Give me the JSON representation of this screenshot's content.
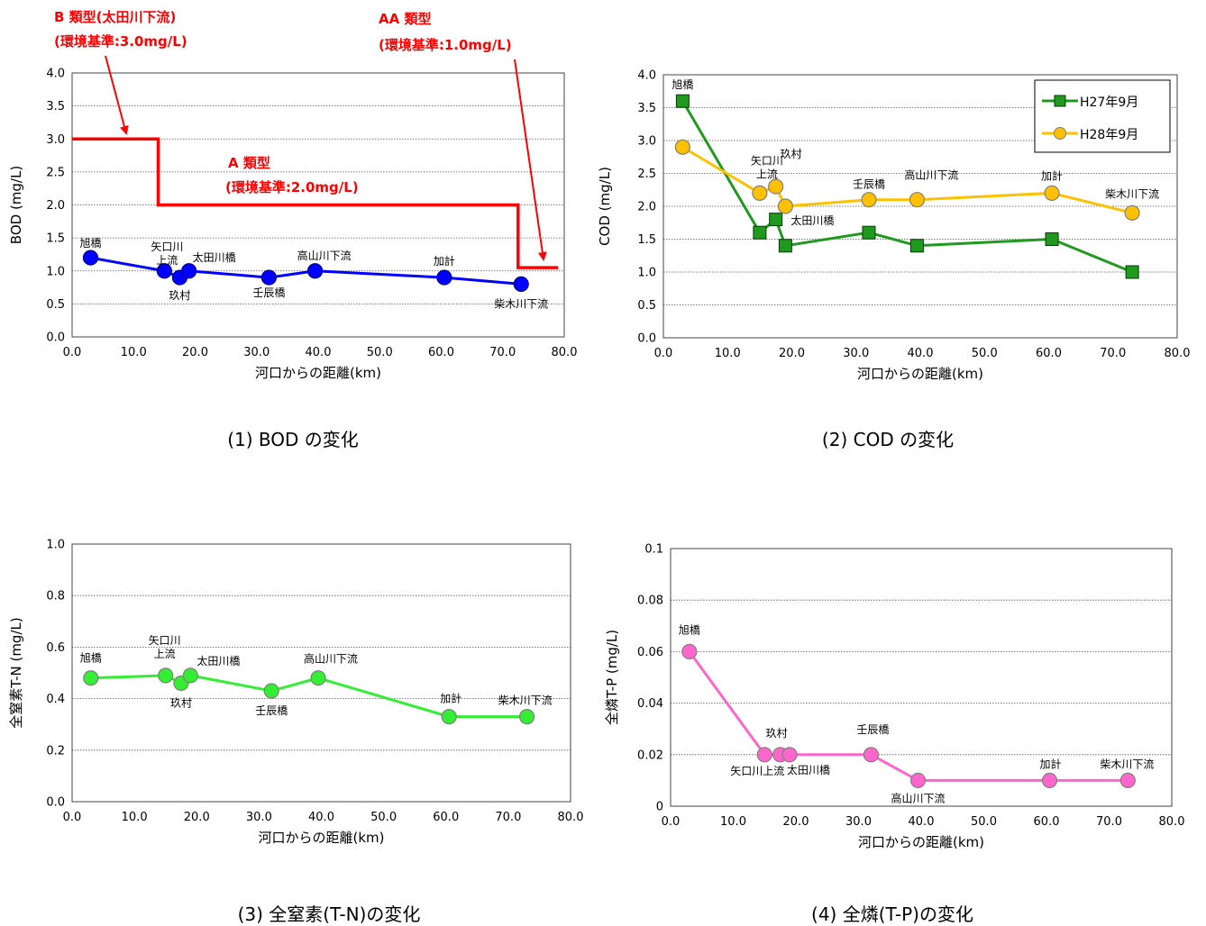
{
  "chart_data": [
    {
      "type": "line",
      "caption": "(1) BOD の変化",
      "xlabel": "河口からの距離(km)",
      "ylabel": "BOD (mg/L)",
      "xlim": [
        0,
        80
      ],
      "ylim": [
        0,
        4
      ],
      "xticks": [
        "0.0",
        "10.0",
        "20.0",
        "30.0",
        "40.0",
        "50.0",
        "60.0",
        "70.0",
        "80.0"
      ],
      "yticks": [
        "0.0",
        "0.5",
        "1.0",
        "1.5",
        "2.0",
        "2.5",
        "3.0",
        "3.5",
        "4.0"
      ],
      "grid": true,
      "series": [
        {
          "color": "#0000ff",
          "marker": "circle",
          "x": [
            3.0,
            15.0,
            17.5,
            19.0,
            32.0,
            39.5,
            60.5,
            73.0
          ],
          "y": [
            1.2,
            1.0,
            0.9,
            1.0,
            0.9,
            1.0,
            0.9,
            0.8
          ],
          "labels": [
            "旭橋",
            "矢口川\n上流",
            "玖村",
            "太田川橋",
            "壬辰橋",
            "高山川下流",
            "加計",
            "柴木川下流"
          ]
        }
      ],
      "standard_line": {
        "color": "#ff0000",
        "x": [
          0,
          14,
          14,
          72.5,
          72.5,
          79
        ],
        "y": [
          3.0,
          3.0,
          2.0,
          2.0,
          1.05,
          1.05
        ]
      },
      "annotations": [
        {
          "text": "B 類型(太田川下流)",
          "color": "#ff0000"
        },
        {
          "text": "(環境基準:3.0mg/L)",
          "color": "#ff0000"
        },
        {
          "text": "AA 類型",
          "color": "#ff0000"
        },
        {
          "text": "(環境基準:1.0mg/L)",
          "color": "#ff0000"
        },
        {
          "text": "A 類型",
          "color": "#ff0000"
        },
        {
          "text": "(環境基準:2.0mg/L)",
          "color": "#ff0000"
        }
      ]
    },
    {
      "type": "line",
      "caption": "(2) COD の変化",
      "xlabel": "河口からの距離(km)",
      "ylabel": "COD (mg/L)",
      "xlim": [
        0,
        80
      ],
      "ylim": [
        0,
        4
      ],
      "xticks": [
        "0.0",
        "10.0",
        "20.0",
        "30.0",
        "40.0",
        "50.0",
        "60.0",
        "70.0",
        "80.0"
      ],
      "yticks": [
        "0.0",
        "0.5",
        "1.0",
        "1.5",
        "2.0",
        "2.5",
        "3.0",
        "3.5",
        "4.0"
      ],
      "grid": true,
      "legend": "top-right",
      "series": [
        {
          "name": "H27年9月",
          "color": "#1f9a1f",
          "marker": "square",
          "x": [
            3.0,
            15.0,
            17.5,
            19.0,
            32.0,
            39.5,
            60.5,
            73.0
          ],
          "y": [
            3.6,
            1.6,
            1.8,
            1.4,
            1.6,
            1.4,
            1.5,
            1.0
          ]
        },
        {
          "name": "H28年9月",
          "color": "#ffc000",
          "marker": "circle",
          "x": [
            3.0,
            15.0,
            17.5,
            19.0,
            32.0,
            39.5,
            60.5,
            73.0
          ],
          "y": [
            2.9,
            2.2,
            2.3,
            2.0,
            2.1,
            2.1,
            2.2,
            1.9
          ]
        }
      ],
      "labels": [
        "旭橋",
        "矢口川\n上流",
        "玖村",
        "太田川橋",
        "壬辰橋",
        "高山川下流",
        "加計",
        "柴木川下流"
      ]
    },
    {
      "type": "line",
      "caption": "(3) 全窒素(T-N)の変化",
      "xlabel": "河口からの距離(km)",
      "ylabel": "全窒素T-N (mg/L)",
      "xlim": [
        0,
        80
      ],
      "ylim": [
        0,
        1
      ],
      "xticks": [
        "0.0",
        "10.0",
        "20.0",
        "30.0",
        "40.0",
        "50.0",
        "60.0",
        "70.0",
        "80.0"
      ],
      "yticks": [
        "0.0",
        "0.2",
        "0.4",
        "0.6",
        "0.8",
        "1.0"
      ],
      "grid": true,
      "series": [
        {
          "color": "#33ee33",
          "marker": "circle",
          "x": [
            3.0,
            15.0,
            17.5,
            19.0,
            32.0,
            39.5,
            60.5,
            73.0
          ],
          "y": [
            0.48,
            0.49,
            0.46,
            0.49,
            0.43,
            0.48,
            0.33,
            0.33
          ],
          "labels": [
            "旭橋",
            "矢口川\n上流",
            "玖村",
            "太田川橋",
            "壬辰橋",
            "高山川下流",
            "加計",
            "柴木川下流"
          ]
        }
      ]
    },
    {
      "type": "line",
      "caption": "(4) 全燐(T-P)の変化",
      "xlabel": "河口からの距離(km)",
      "ylabel": "全燐T-P (mg/L)",
      "xlim": [
        0,
        80
      ],
      "ylim": [
        0,
        0.1
      ],
      "xticks": [
        "0.0",
        "10.0",
        "20.0",
        "30.0",
        "40.0",
        "50.0",
        "60.0",
        "70.0",
        "80.0"
      ],
      "yticks": [
        "0",
        "0.02",
        "0.04",
        "0.06",
        "0.08",
        "0.1"
      ],
      "grid": true,
      "series": [
        {
          "color": "#ff66cc",
          "marker": "circle",
          "x": [
            3.0,
            15.0,
            17.5,
            19.0,
            32.0,
            39.5,
            60.5,
            73.0
          ],
          "y": [
            0.06,
            0.02,
            0.02,
            0.02,
            0.02,
            0.01,
            0.01,
            0.01
          ],
          "labels": [
            "旭橋",
            "矢口川上流",
            "玖村",
            "太田川橋",
            "壬辰橋",
            "高山川下流",
            "加計",
            "柴木川下流"
          ]
        }
      ]
    }
  ]
}
